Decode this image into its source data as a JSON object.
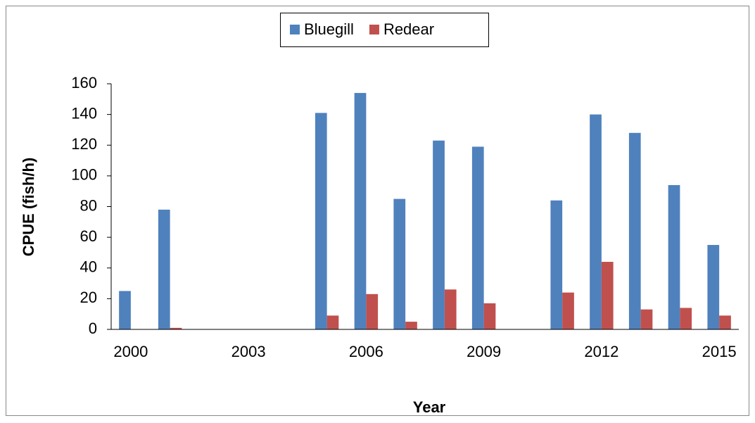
{
  "chart_data": {
    "type": "bar",
    "x_label": "Year",
    "y_label": "CPUE (fish/h)",
    "categories": [
      "2000",
      null,
      null,
      "2003",
      null,
      null,
      "2006",
      null,
      null,
      "2009",
      null,
      null,
      "2012",
      null,
      null,
      "2015"
    ],
    "series": [
      {
        "name": "Bluegill",
        "color": "#4f81bd",
        "values": [
          25,
          78,
          null,
          null,
          null,
          141,
          154,
          85,
          123,
          119,
          null,
          84,
          140,
          128,
          94,
          55
        ]
      },
      {
        "name": "Redear",
        "color": "#c0504d",
        "values": [
          null,
          1,
          null,
          null,
          null,
          9,
          23,
          5,
          26,
          17,
          null,
          24,
          44,
          13,
          14,
          9
        ]
      }
    ],
    "ylim": [
      0,
      160
    ],
    "yticks": [
      0,
      20,
      40,
      60,
      80,
      100,
      120,
      140,
      160
    ],
    "grid": false,
    "legend": "top"
  }
}
